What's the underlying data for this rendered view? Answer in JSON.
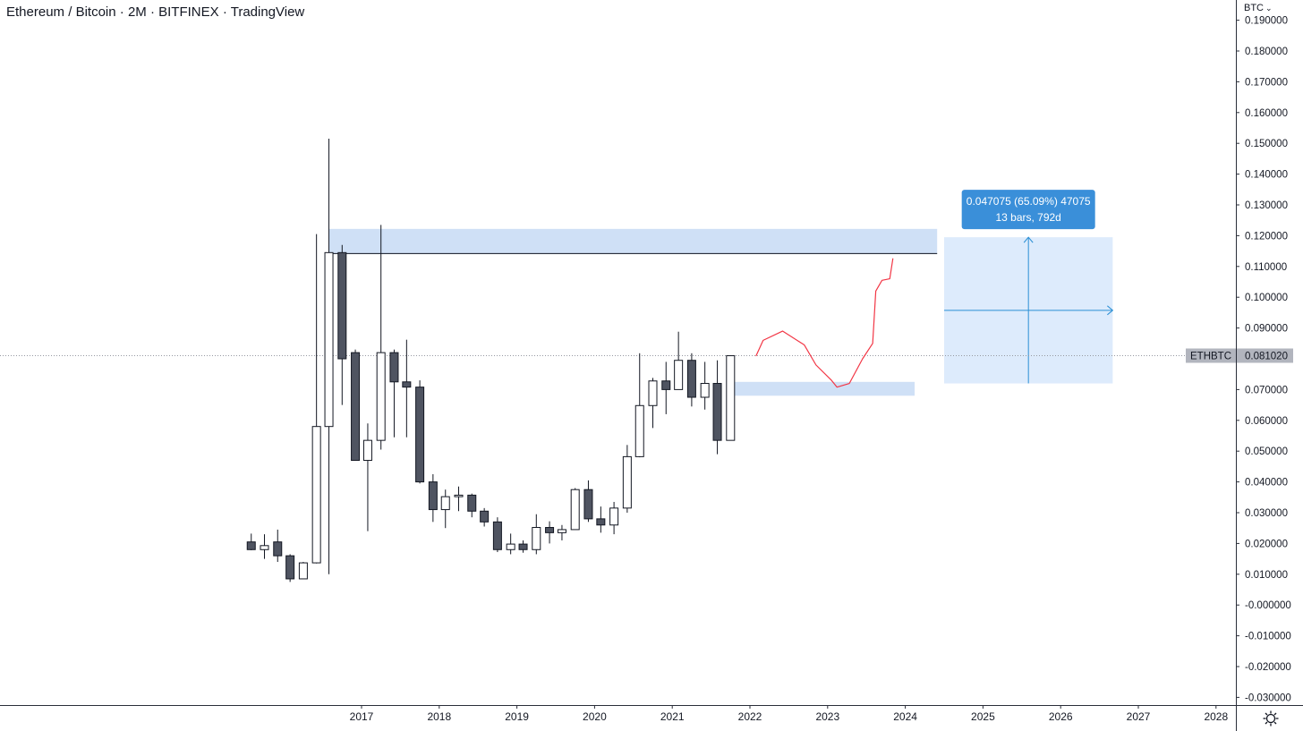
{
  "header": {
    "symbol": "Ethereum",
    "separator": "/",
    "quote": "Bitcoin",
    "interval": "2M",
    "exchange": "BITFINEX",
    "provider": "TradingView"
  },
  "currency_selector": {
    "label": "BTC",
    "icon": "chevron-down-icon"
  },
  "settings": {
    "icon": "gear-icon"
  },
  "price_label": {
    "symbol": "ETHBTC",
    "value": "0.081020",
    "price": 0.08102
  },
  "measure": {
    "line1": "0.047075 (65.09%) 47075",
    "line2": "13 bars, 792d"
  },
  "colors": {
    "bull_body": "#ffffff",
    "bear_body": "#4f5461",
    "candle_outline": "#131722",
    "zone": "#cfe0f6",
    "measure_fill": "#d7e8fb",
    "measure_line": "#2b8fd4",
    "measure_label": "#3a8fd9",
    "drawing": "#f23645",
    "axis_text": "#131722"
  },
  "chart_data": {
    "type": "candlestick",
    "title": "Ethereum / Bitcoin · 2M · BITFINEX · TradingView",
    "ylabel": "BTC",
    "ylim": [
      -0.03,
      0.19
    ],
    "grid": false,
    "y_ticks": [
      "0.190000",
      "0.180000",
      "0.170000",
      "0.160000",
      "0.150000",
      "0.140000",
      "0.130000",
      "0.120000",
      "0.110000",
      "0.100000",
      "0.090000",
      "0.080000",
      "0.070000",
      "0.060000",
      "0.050000",
      "0.040000",
      "0.030000",
      "0.020000",
      "0.010000",
      "-0.000000",
      "-0.010000",
      "-0.020000",
      "-0.030000"
    ],
    "x_ticks": [
      {
        "label": "2017",
        "t": 2017.0
      },
      {
        "label": "2018",
        "t": 2018.0
      },
      {
        "label": "2019",
        "t": 2019.0
      },
      {
        "label": "2020",
        "t": 2020.0
      },
      {
        "label": "2021",
        "t": 2021.0
      },
      {
        "label": "2022",
        "t": 2022.0
      },
      {
        "label": "2023",
        "t": 2023.0
      },
      {
        "label": "2024",
        "t": 2024.0
      },
      {
        "label": "2025",
        "t": 2025.0
      },
      {
        "label": "2026",
        "t": 2026.0
      },
      {
        "label": "2027",
        "t": 2027.0
      },
      {
        "label": "2028",
        "t": 2028.0
      }
    ],
    "candles": [
      {
        "t": 2015.58,
        "o": 0.0205,
        "h": 0.0232,
        "l": 0.0178,
        "c": 0.018
      },
      {
        "t": 2015.75,
        "o": 0.018,
        "h": 0.023,
        "l": 0.015,
        "c": 0.0193
      },
      {
        "t": 2015.92,
        "o": 0.0205,
        "h": 0.0245,
        "l": 0.014,
        "c": 0.016
      },
      {
        "t": 2016.08,
        "o": 0.016,
        "h": 0.0165,
        "l": 0.0075,
        "c": 0.0085
      },
      {
        "t": 2016.25,
        "o": 0.0085,
        "h": 0.014,
        "l": 0.0085,
        "c": 0.0137
      },
      {
        "t": 2016.42,
        "o": 0.0137,
        "h": 0.1205,
        "l": 0.0135,
        "c": 0.058
      },
      {
        "t": 2016.58,
        "o": 0.058,
        "h": 0.1515,
        "l": 0.01,
        "c": 0.1145
      },
      {
        "t": 2016.75,
        "o": 0.1145,
        "h": 0.117,
        "l": 0.065,
        "c": 0.08
      },
      {
        "t": 2016.92,
        "o": 0.082,
        "h": 0.083,
        "l": 0.047,
        "c": 0.047
      },
      {
        "t": 2017.08,
        "o": 0.047,
        "h": 0.059,
        "l": 0.024,
        "c": 0.0535
      },
      {
        "t": 2017.25,
        "o": 0.0535,
        "h": 0.1235,
        "l": 0.0505,
        "c": 0.082
      },
      {
        "t": 2017.42,
        "o": 0.082,
        "h": 0.083,
        "l": 0.0545,
        "c": 0.0725
      },
      {
        "t": 2017.58,
        "o": 0.0725,
        "h": 0.0862,
        "l": 0.0545,
        "c": 0.0708
      },
      {
        "t": 2017.75,
        "o": 0.0708,
        "h": 0.073,
        "l": 0.0395,
        "c": 0.04
      },
      {
        "t": 2017.92,
        "o": 0.04,
        "h": 0.0425,
        "l": 0.027,
        "c": 0.031
      },
      {
        "t": 2018.08,
        "o": 0.031,
        "h": 0.0375,
        "l": 0.025,
        "c": 0.0352
      },
      {
        "t": 2018.25,
        "o": 0.0352,
        "h": 0.0385,
        "l": 0.0305,
        "c": 0.0357
      },
      {
        "t": 2018.42,
        "o": 0.0357,
        "h": 0.0362,
        "l": 0.0285,
        "c": 0.0305
      },
      {
        "t": 2018.58,
        "o": 0.0305,
        "h": 0.0315,
        "l": 0.0255,
        "c": 0.027
      },
      {
        "t": 2018.75,
        "o": 0.027,
        "h": 0.0285,
        "l": 0.0172,
        "c": 0.018
      },
      {
        "t": 2018.92,
        "o": 0.018,
        "h": 0.0232,
        "l": 0.0165,
        "c": 0.0198
      },
      {
        "t": 2019.08,
        "o": 0.0198,
        "h": 0.021,
        "l": 0.017,
        "c": 0.018
      },
      {
        "t": 2019.25,
        "o": 0.018,
        "h": 0.0295,
        "l": 0.0165,
        "c": 0.0252
      },
      {
        "t": 2019.42,
        "o": 0.0252,
        "h": 0.0272,
        "l": 0.02,
        "c": 0.0235
      },
      {
        "t": 2019.58,
        "o": 0.0235,
        "h": 0.026,
        "l": 0.021,
        "c": 0.0245
      },
      {
        "t": 2019.75,
        "o": 0.0245,
        "h": 0.038,
        "l": 0.0245,
        "c": 0.0375
      },
      {
        "t": 2019.92,
        "o": 0.0375,
        "h": 0.0405,
        "l": 0.027,
        "c": 0.028
      },
      {
        "t": 2020.08,
        "o": 0.028,
        "h": 0.032,
        "l": 0.0235,
        "c": 0.026
      },
      {
        "t": 2020.25,
        "o": 0.026,
        "h": 0.0335,
        "l": 0.023,
        "c": 0.0315
      },
      {
        "t": 2020.42,
        "o": 0.0315,
        "h": 0.052,
        "l": 0.03,
        "c": 0.0482
      },
      {
        "t": 2020.58,
        "o": 0.0482,
        "h": 0.0818,
        "l": 0.048,
        "c": 0.0648
      },
      {
        "t": 2020.75,
        "o": 0.0648,
        "h": 0.0738,
        "l": 0.0575,
        "c": 0.0728
      },
      {
        "t": 2020.92,
        "o": 0.0728,
        "h": 0.079,
        "l": 0.062,
        "c": 0.07
      },
      {
        "t": 2021.08,
        "o": 0.07,
        "h": 0.0888,
        "l": 0.07,
        "c": 0.0795
      },
      {
        "t": 2021.25,
        "o": 0.0795,
        "h": 0.0818,
        "l": 0.0645,
        "c": 0.0675
      },
      {
        "t": 2021.42,
        "o": 0.0675,
        "h": 0.079,
        "l": 0.0635,
        "c": 0.072
      },
      {
        "t": 2021.58,
        "o": 0.072,
        "h": 0.0795,
        "l": 0.049,
        "c": 0.0535
      },
      {
        "t": 2021.75,
        "o": 0.0535,
        "h": 0.081,
        "l": 0.0535,
        "c": 0.081
      }
    ],
    "annotations": {
      "resistance_zone": {
        "t0": 2016.58,
        "t1": 2024.41,
        "y0": 0.114,
        "y1": 0.1222
      },
      "resistance_line": {
        "t0": 2016.58,
        "t1": 2024.41,
        "y": 0.1142
      },
      "support_zone": {
        "t0": 2021.75,
        "t1": 2024.12,
        "y0": 0.068,
        "y1": 0.0725
      },
      "projection_path": [
        [
          2022.08,
          0.081
        ],
        [
          2022.17,
          0.086
        ],
        [
          2022.42,
          0.089
        ],
        [
          2022.7,
          0.0845
        ],
        [
          2022.85,
          0.078
        ],
        [
          2023.05,
          0.073
        ],
        [
          2023.12,
          0.0708
        ],
        [
          2023.28,
          0.072
        ],
        [
          2023.45,
          0.08
        ],
        [
          2023.58,
          0.085
        ],
        [
          2023.62,
          0.102
        ],
        [
          2023.7,
          0.1055
        ],
        [
          2023.8,
          0.106
        ],
        [
          2023.84,
          0.1125
        ]
      ],
      "measure_box": {
        "t0": 2024.5,
        "t1": 2026.67,
        "y0": 0.072,
        "y1": 0.1195
      }
    }
  }
}
